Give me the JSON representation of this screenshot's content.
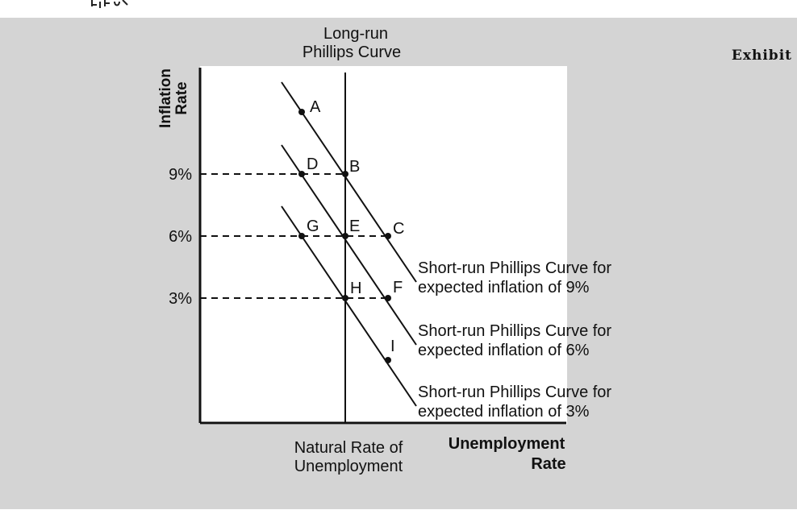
{
  "header": {
    "exhibit": "Exhibit"
  },
  "colors": {
    "panel": "#d4d4d4",
    "plot_bg": "#ffffff",
    "ink": "#111111"
  },
  "axes": {
    "y_title_line1": "Inflation",
    "y_title_line2": "Rate",
    "x_title_line1": "Unemployment",
    "x_title_line2": "Rate",
    "natural_rate_line1": "Natural Rate of",
    "natural_rate_line2": "Unemployment",
    "y_ticks": [
      "9%",
      "6%",
      "3%"
    ]
  },
  "lrpc": {
    "line1": "Long-run",
    "line2": "Phillips Curve"
  },
  "srpc": [
    {
      "line1": "Short-run Phillips Curve for",
      "line2": "expected inflation of 9%"
    },
    {
      "line1": "Short-run Phillips Curve for",
      "line2": "expected inflation of 6%"
    },
    {
      "line1": "Short-run Phillips Curve for",
      "line2": "expected inflation of 3%"
    }
  ],
  "points": [
    {
      "label": "A",
      "curve": 0
    },
    {
      "label": "B",
      "curve": 0,
      "inflation": 9
    },
    {
      "label": "C",
      "curve": 0,
      "inflation": 6
    },
    {
      "label": "D",
      "curve": 1,
      "inflation": 9
    },
    {
      "label": "E",
      "curve": 1,
      "inflation": 6
    },
    {
      "label": "F",
      "curve": 1,
      "inflation": 3
    },
    {
      "label": "G",
      "curve": 2,
      "inflation": 6
    },
    {
      "label": "H",
      "curve": 2,
      "inflation": 3
    },
    {
      "label": "I",
      "curve": 2
    }
  ]
}
